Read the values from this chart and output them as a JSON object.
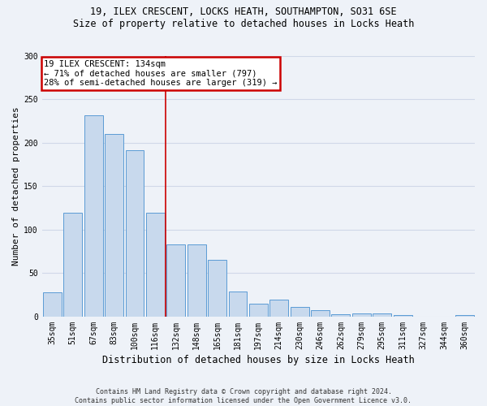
{
  "title_line1": "19, ILEX CRESCENT, LOCKS HEATH, SOUTHAMPTON, SO31 6SE",
  "title_line2": "Size of property relative to detached houses in Locks Heath",
  "xlabel": "Distribution of detached houses by size in Locks Heath",
  "ylabel": "Number of detached properties",
  "categories": [
    "35sqm",
    "51sqm",
    "67sqm",
    "83sqm",
    "100sqm",
    "116sqm",
    "132sqm",
    "148sqm",
    "165sqm",
    "181sqm",
    "197sqm",
    "214sqm",
    "230sqm",
    "246sqm",
    "262sqm",
    "279sqm",
    "295sqm",
    "311sqm",
    "327sqm",
    "344sqm",
    "360sqm"
  ],
  "values": [
    28,
    120,
    232,
    210,
    192,
    120,
    83,
    83,
    65,
    29,
    15,
    20,
    11,
    7,
    3,
    4,
    4,
    2,
    0,
    0,
    2
  ],
  "bar_color": "#c8d9ed",
  "bar_edge_color": "#5b9bd5",
  "grid_color": "#d0d8e8",
  "annotation_text_line1": "19 ILEX CRESCENT: 134sqm",
  "annotation_text_line2": "← 71% of detached houses are smaller (797)",
  "annotation_text_line3": "28% of semi-detached houses are larger (319) →",
  "annotation_box_color": "#ffffff",
  "annotation_box_edge_color": "#cc0000",
  "vline_color": "#cc0000",
  "vline_x": 5.5,
  "ylim": [
    0,
    300
  ],
  "yticks": [
    0,
    50,
    100,
    150,
    200,
    250,
    300
  ],
  "footer_line1": "Contains HM Land Registry data © Crown copyright and database right 2024.",
  "footer_line2": "Contains public sector information licensed under the Open Government Licence v3.0.",
  "bg_color": "#eef2f8",
  "title_fontsize": 8.5,
  "ylabel_fontsize": 8,
  "xlabel_fontsize": 8.5,
  "tick_fontsize": 7,
  "footer_fontsize": 6,
  "ann_fontsize": 7.5
}
